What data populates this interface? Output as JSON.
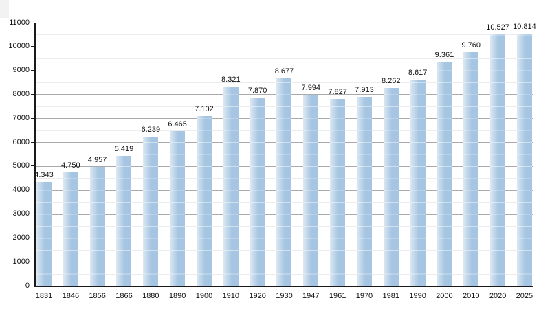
{
  "chart_data": {
    "type": "bar",
    "title": "",
    "xlabel": "",
    "ylabel": "",
    "categories": [
      "1831",
      "1846",
      "1856",
      "1866",
      "1880",
      "1890",
      "1900",
      "1910",
      "1920",
      "1930",
      "1947",
      "1961",
      "1970",
      "1981",
      "1990",
      "2000",
      "2010",
      "2020",
      "2025"
    ],
    "values": [
      4343,
      4750,
      4957,
      5419,
      6239,
      6465,
      7102,
      8321,
      7870,
      8677,
      7994,
      7827,
      7913,
      8262,
      8617,
      9361,
      9760,
      10527,
      10814
    ],
    "value_labels": [
      "4.343",
      "4.750",
      "4.957",
      "5.419",
      "6.239",
      "6.465",
      "7.102",
      "8.321",
      "7.870",
      "8.677",
      "7.994",
      "7.827",
      "7.913",
      "8.262",
      "8.617",
      "9.361",
      "9.760",
      "10.527",
      "10.814"
    ],
    "ylim": [
      0,
      11000
    ],
    "y_major_step": 1000,
    "y_minor_step": 500,
    "y_tick_labels": [
      "0",
      "1000",
      "2000",
      "3000",
      "4000",
      "5000",
      "6000",
      "7000",
      "8000",
      "9000",
      "10000",
      "11000"
    ],
    "grid": "on",
    "legend": "none",
    "colors": {
      "bar_base": "#a6c5e2",
      "bar_left_highlight": "#dce8f3",
      "bar_gridline_overlay": "rgba(255,255,255,0.45)",
      "gridline_major": "#aaaaaa",
      "gridline_minor": "#ececec",
      "axis": "#1a1a1a",
      "text": "#111111",
      "background": "#ffffff"
    }
  }
}
